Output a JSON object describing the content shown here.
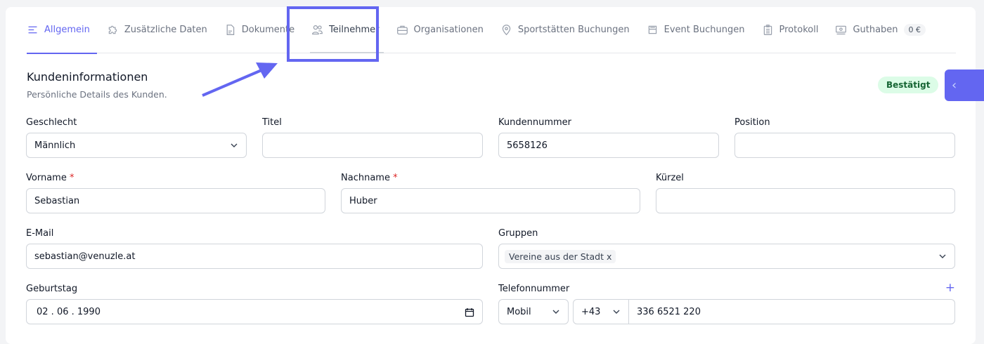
{
  "tabs": [
    {
      "label": "Allgemein",
      "icon": "menu-lines-icon",
      "active": true
    },
    {
      "label": "Zusätzliche Daten",
      "icon": "puzzle-icon"
    },
    {
      "label": "Dokumente",
      "icon": "document-icon"
    },
    {
      "label": "Teilnehmer",
      "icon": "users-icon",
      "highlighted": true
    },
    {
      "label": "Organisationen",
      "icon": "briefcase-icon"
    },
    {
      "label": "Sportstätten Buchungen",
      "icon": "map-pin-icon"
    },
    {
      "label": "Event Buchungen",
      "icon": "inbox-stack-icon"
    },
    {
      "label": "Protokoll",
      "icon": "clipboard-icon"
    },
    {
      "label": "Guthaben",
      "icon": "banknote-icon",
      "badge": "0 €"
    }
  ],
  "section": {
    "title": "Kundeninformationen",
    "subtitle": "Persönliche Details des Kunden.",
    "status": "Bestätigt"
  },
  "colors": {
    "accent": "#6366f1",
    "status_bg": "#dcfce7",
    "status_text": "#166534"
  },
  "fields": {
    "geschlecht": {
      "label": "Geschlecht",
      "value": "Männlich"
    },
    "titel": {
      "label": "Titel",
      "value": ""
    },
    "kundennummer": {
      "label": "Kundennummer",
      "value": "5658126"
    },
    "position": {
      "label": "Position",
      "value": ""
    },
    "vorname": {
      "label": "Vorname",
      "required": "*",
      "value": "Sebastian"
    },
    "nachname": {
      "label": "Nachname",
      "required": "*",
      "value": "Huber"
    },
    "kuerzel": {
      "label": "Kürzel",
      "value": ""
    },
    "email": {
      "label": "E-Mail",
      "value": "sebastian@venuzle.at"
    },
    "gruppen": {
      "label": "Gruppen",
      "chip": "Vereine aus der Stadt",
      "chip_remove": "x"
    },
    "geburtstag": {
      "label": "Geburtstag",
      "value": "02 . 06 . 1990"
    },
    "telefon": {
      "label": "Telefonnummer",
      "type": "Mobil",
      "prefix": "+43",
      "number": "336 6521 220",
      "add": "+"
    }
  }
}
